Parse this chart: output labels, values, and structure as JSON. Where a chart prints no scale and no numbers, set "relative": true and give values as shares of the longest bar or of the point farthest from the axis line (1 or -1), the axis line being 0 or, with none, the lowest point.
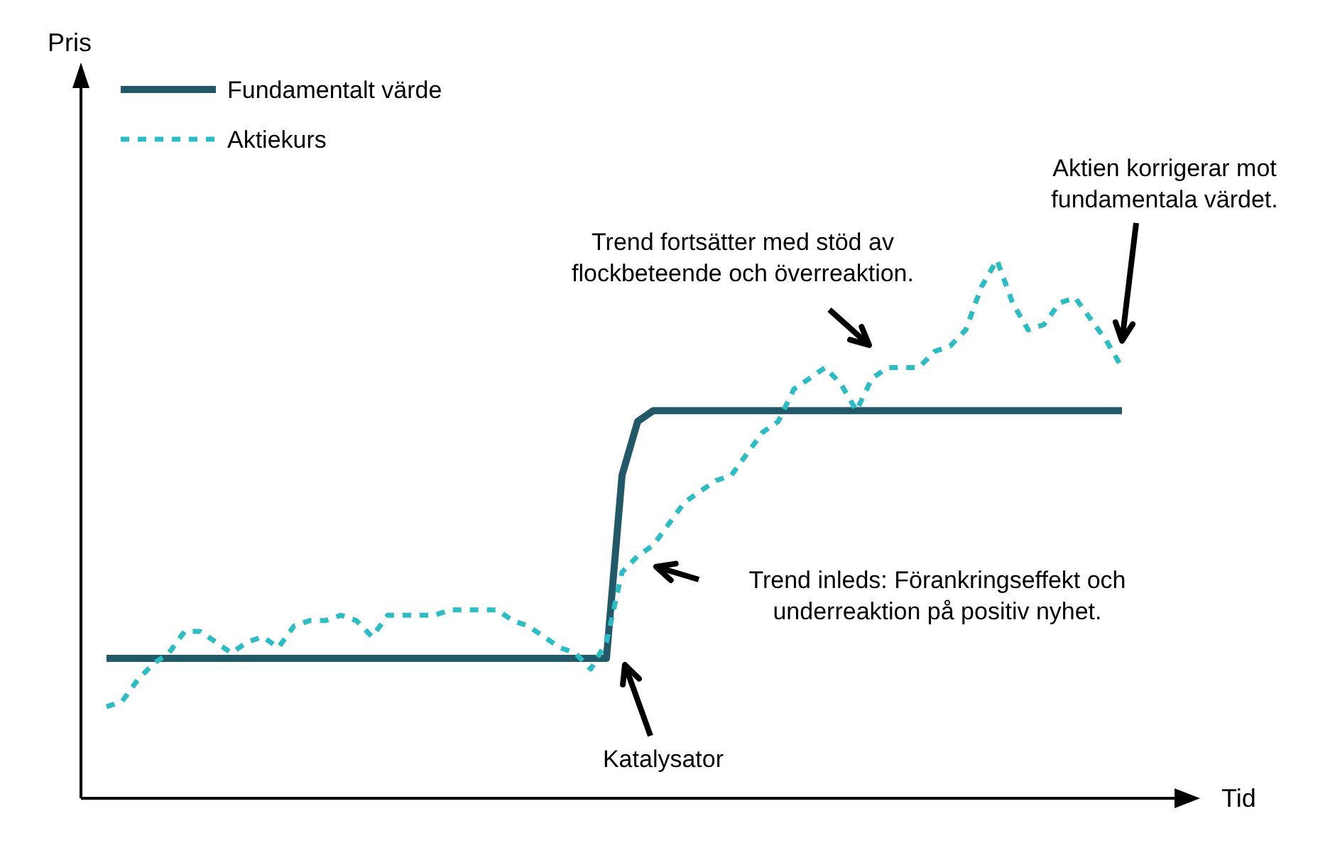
{
  "chart_data": {
    "type": "line",
    "relative": true,
    "xlabel": "Tid",
    "legend": "top left",
    "categories": [
      null,
      null,
      null,
      null,
      null,
      null,
      null,
      null,
      null,
      null,
      null,
      null,
      null,
      null,
      null,
      null,
      null,
      null,
      null,
      null,
      null,
      null,
      null,
      null,
      null,
      null,
      null,
      null,
      null,
      null,
      null,
      null,
      null,
      null,
      null,
      null,
      null,
      null,
      null,
      null,
      null,
      null,
      null,
      null,
      null,
      null,
      null,
      null,
      null,
      null,
      null,
      null,
      null,
      null,
      null,
      null,
      null,
      null,
      null,
      null,
      null,
      null,
      null,
      null,
      null,
      null
    ],
    "series": [
      {
        "name": "Fundamentalt värde",
        "color": "#215968",
        "line_style": "solid",
        "values": [
          0.26,
          0.26,
          0.26,
          0.26,
          0.26,
          0.26,
          0.26,
          0.26,
          0.26,
          0.26,
          0.26,
          0.26,
          0.26,
          0.26,
          0.26,
          0.26,
          0.26,
          0.26,
          0.26,
          0.26,
          0.26,
          0.26,
          0.26,
          0.26,
          0.26,
          0.26,
          0.26,
          0.26,
          0.26,
          0.26,
          0.26,
          0.26,
          0.26,
          0.6,
          0.7,
          0.72,
          0.72,
          0.72,
          0.72,
          0.72,
          0.72,
          0.72,
          0.72,
          0.72,
          0.72,
          0.72,
          0.72,
          0.72,
          0.72,
          0.72,
          0.72,
          0.72,
          0.72,
          0.72,
          0.72,
          0.72,
          0.72,
          0.72,
          0.72,
          0.72,
          0.72,
          0.72,
          0.72,
          0.72,
          0.72,
          0.72
        ]
      },
      {
        "name": "Aktiekurs",
        "color": "#2bbcc4",
        "line_style": "dashed",
        "values": [
          0.17,
          0.18,
          0.22,
          0.25,
          0.27,
          0.31,
          0.31,
          0.29,
          0.27,
          0.29,
          0.3,
          0.28,
          0.32,
          0.33,
          0.33,
          0.34,
          0.33,
          0.3,
          0.34,
          0.34,
          0.34,
          0.34,
          0.35,
          0.35,
          0.35,
          0.35,
          0.33,
          0.32,
          0.3,
          0.28,
          0.27,
          0.24,
          0.29,
          0.42,
          0.45,
          0.47,
          0.51,
          0.55,
          0.57,
          0.59,
          0.6,
          0.64,
          0.68,
          0.7,
          0.76,
          0.78,
          0.8,
          0.77,
          0.72,
          0.78,
          0.8,
          0.8,
          0.8,
          0.83,
          0.84,
          0.87,
          0.95,
          1,
          0.92,
          0.87,
          0.88,
          0.92,
          0.93,
          0.89,
          0.85,
          0.8
        ]
      }
    ],
    "annotations": [
      "Katalysator",
      "Trend inleds: Förankringseffekt och\nunderreaktion på positiv nyhet.",
      "Trend fortsätter med stöd av\nflockbeteende och överreaktion.",
      "Aktien korrigerar mot\nfundamentala värdet.",
      "Pris"
    ]
  }
}
